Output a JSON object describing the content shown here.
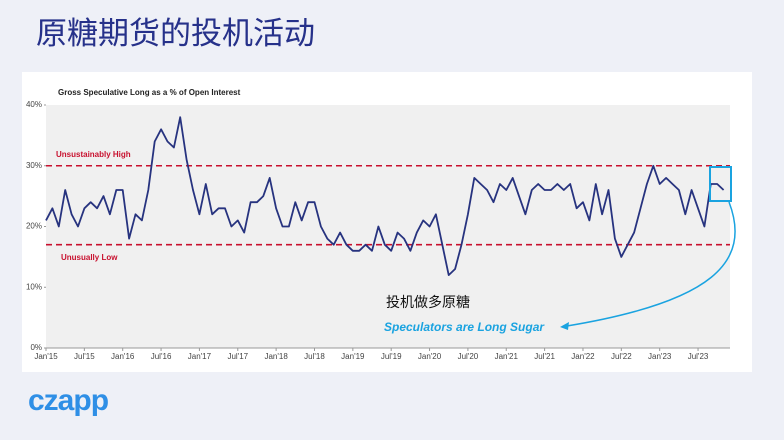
{
  "title": "原糖期货的投机活动",
  "logo": "czapp",
  "chart_data": {
    "type": "line",
    "title": "Gross Speculative Long as a % of Open Interest",
    "x": [
      "2015-01",
      "2015-02",
      "2015-03",
      "2015-04",
      "2015-05",
      "2015-06",
      "2015-07",
      "2015-08",
      "2015-09",
      "2015-10",
      "2015-11",
      "2015-12",
      "2016-01",
      "2016-02",
      "2016-03",
      "2016-04",
      "2016-05",
      "2016-06",
      "2016-07",
      "2016-08",
      "2016-09",
      "2016-10",
      "2016-11",
      "2016-12",
      "2017-01",
      "2017-02",
      "2017-03",
      "2017-04",
      "2017-05",
      "2017-06",
      "2017-07",
      "2017-08",
      "2017-09",
      "2017-10",
      "2017-11",
      "2017-12",
      "2018-01",
      "2018-02",
      "2018-03",
      "2018-04",
      "2018-05",
      "2018-06",
      "2018-07",
      "2018-08",
      "2018-09",
      "2018-10",
      "2018-11",
      "2018-12",
      "2019-01",
      "2019-02",
      "2019-03",
      "2019-04",
      "2019-05",
      "2019-06",
      "2019-07",
      "2019-08",
      "2019-09",
      "2019-10",
      "2019-11",
      "2019-12",
      "2020-01",
      "2020-02",
      "2020-03",
      "2020-04",
      "2020-05",
      "2020-06",
      "2020-07",
      "2020-08",
      "2020-09",
      "2020-10",
      "2020-11",
      "2020-12",
      "2021-01",
      "2021-02",
      "2021-03",
      "2021-04",
      "2021-05",
      "2021-06",
      "2021-07",
      "2021-08",
      "2021-09",
      "2021-10",
      "2021-11",
      "2021-12",
      "2022-01",
      "2022-02",
      "2022-03",
      "2022-04",
      "2022-05",
      "2022-06",
      "2022-07",
      "2022-08",
      "2022-09",
      "2022-10",
      "2022-11",
      "2022-12",
      "2023-01",
      "2023-02",
      "2023-03",
      "2023-04",
      "2023-05",
      "2023-06",
      "2023-07",
      "2023-08",
      "2023-09",
      "2023-10",
      "2023-11"
    ],
    "series": [
      {
        "name": "Gross Speculative Long",
        "color": "#27337f",
        "values": [
          21,
          23,
          20,
          26,
          22,
          20,
          23,
          24,
          23,
          25,
          22,
          26,
          26,
          18,
          22,
          21,
          26,
          34,
          36,
          34,
          33,
          38,
          31,
          26,
          22,
          27,
          22,
          23,
          23,
          20,
          21,
          19,
          24,
          24,
          25,
          28,
          23,
          20,
          20,
          24,
          21,
          24,
          24,
          20,
          18,
          17,
          19,
          17,
          16,
          16,
          17,
          16,
          20,
          17,
          16,
          19,
          18,
          16,
          19,
          21,
          20,
          22,
          17,
          12,
          13,
          17,
          22,
          28,
          27,
          26,
          24,
          27,
          26,
          28,
          25,
          22,
          26,
          27,
          26,
          26,
          27,
          26,
          27,
          23,
          24,
          21,
          27,
          22,
          26,
          18,
          15,
          17,
          19,
          23,
          27,
          30,
          27,
          28,
          27,
          26,
          22,
          26,
          23,
          20,
          27,
          27,
          26
        ]
      }
    ],
    "xlim": [
      "2015-01",
      "2023-12"
    ],
    "xticks": [
      {
        "value": "2015-01",
        "label": "Jan'15"
      },
      {
        "value": "2015-07",
        "label": "Jul'15"
      },
      {
        "value": "2016-01",
        "label": "Jan'16"
      },
      {
        "value": "2016-07",
        "label": "Jul'16"
      },
      {
        "value": "2017-01",
        "label": "Jan'17"
      },
      {
        "value": "2017-07",
        "label": "Jul'17"
      },
      {
        "value": "2018-01",
        "label": "Jan'18"
      },
      {
        "value": "2018-07",
        "label": "Jul'18"
      },
      {
        "value": "2019-01",
        "label": "Jan'19"
      },
      {
        "value": "2019-07",
        "label": "Jul'19"
      },
      {
        "value": "2020-01",
        "label": "Jan'20"
      },
      {
        "value": "2020-07",
        "label": "Jul'20"
      },
      {
        "value": "2021-01",
        "label": "Jan'21"
      },
      {
        "value": "2021-07",
        "label": "Jul'21"
      },
      {
        "value": "2022-01",
        "label": "Jan'22"
      },
      {
        "value": "2022-07",
        "label": "Jul'22"
      },
      {
        "value": "2023-01",
        "label": "Jan'23"
      },
      {
        "value": "2023-07",
        "label": "Jul'23"
      }
    ],
    "ylim": [
      0,
      40
    ],
    "yticks": [
      {
        "value": 0,
        "label": "0%"
      },
      {
        "value": 10,
        "label": "10%"
      },
      {
        "value": 20,
        "label": "20%"
      },
      {
        "value": 30,
        "label": "30%"
      },
      {
        "value": 40,
        "label": "40%"
      }
    ],
    "reference_lines": [
      {
        "value": 30,
        "label": "Unsustainably High",
        "color": "#c8102e"
      },
      {
        "value": 17,
        "label": "Unusually Low",
        "color": "#c8102e"
      }
    ],
    "annotations": [
      {
        "text": "投机做多原糖"
      },
      {
        "text": "Speculators are Long Sugar"
      }
    ]
  }
}
